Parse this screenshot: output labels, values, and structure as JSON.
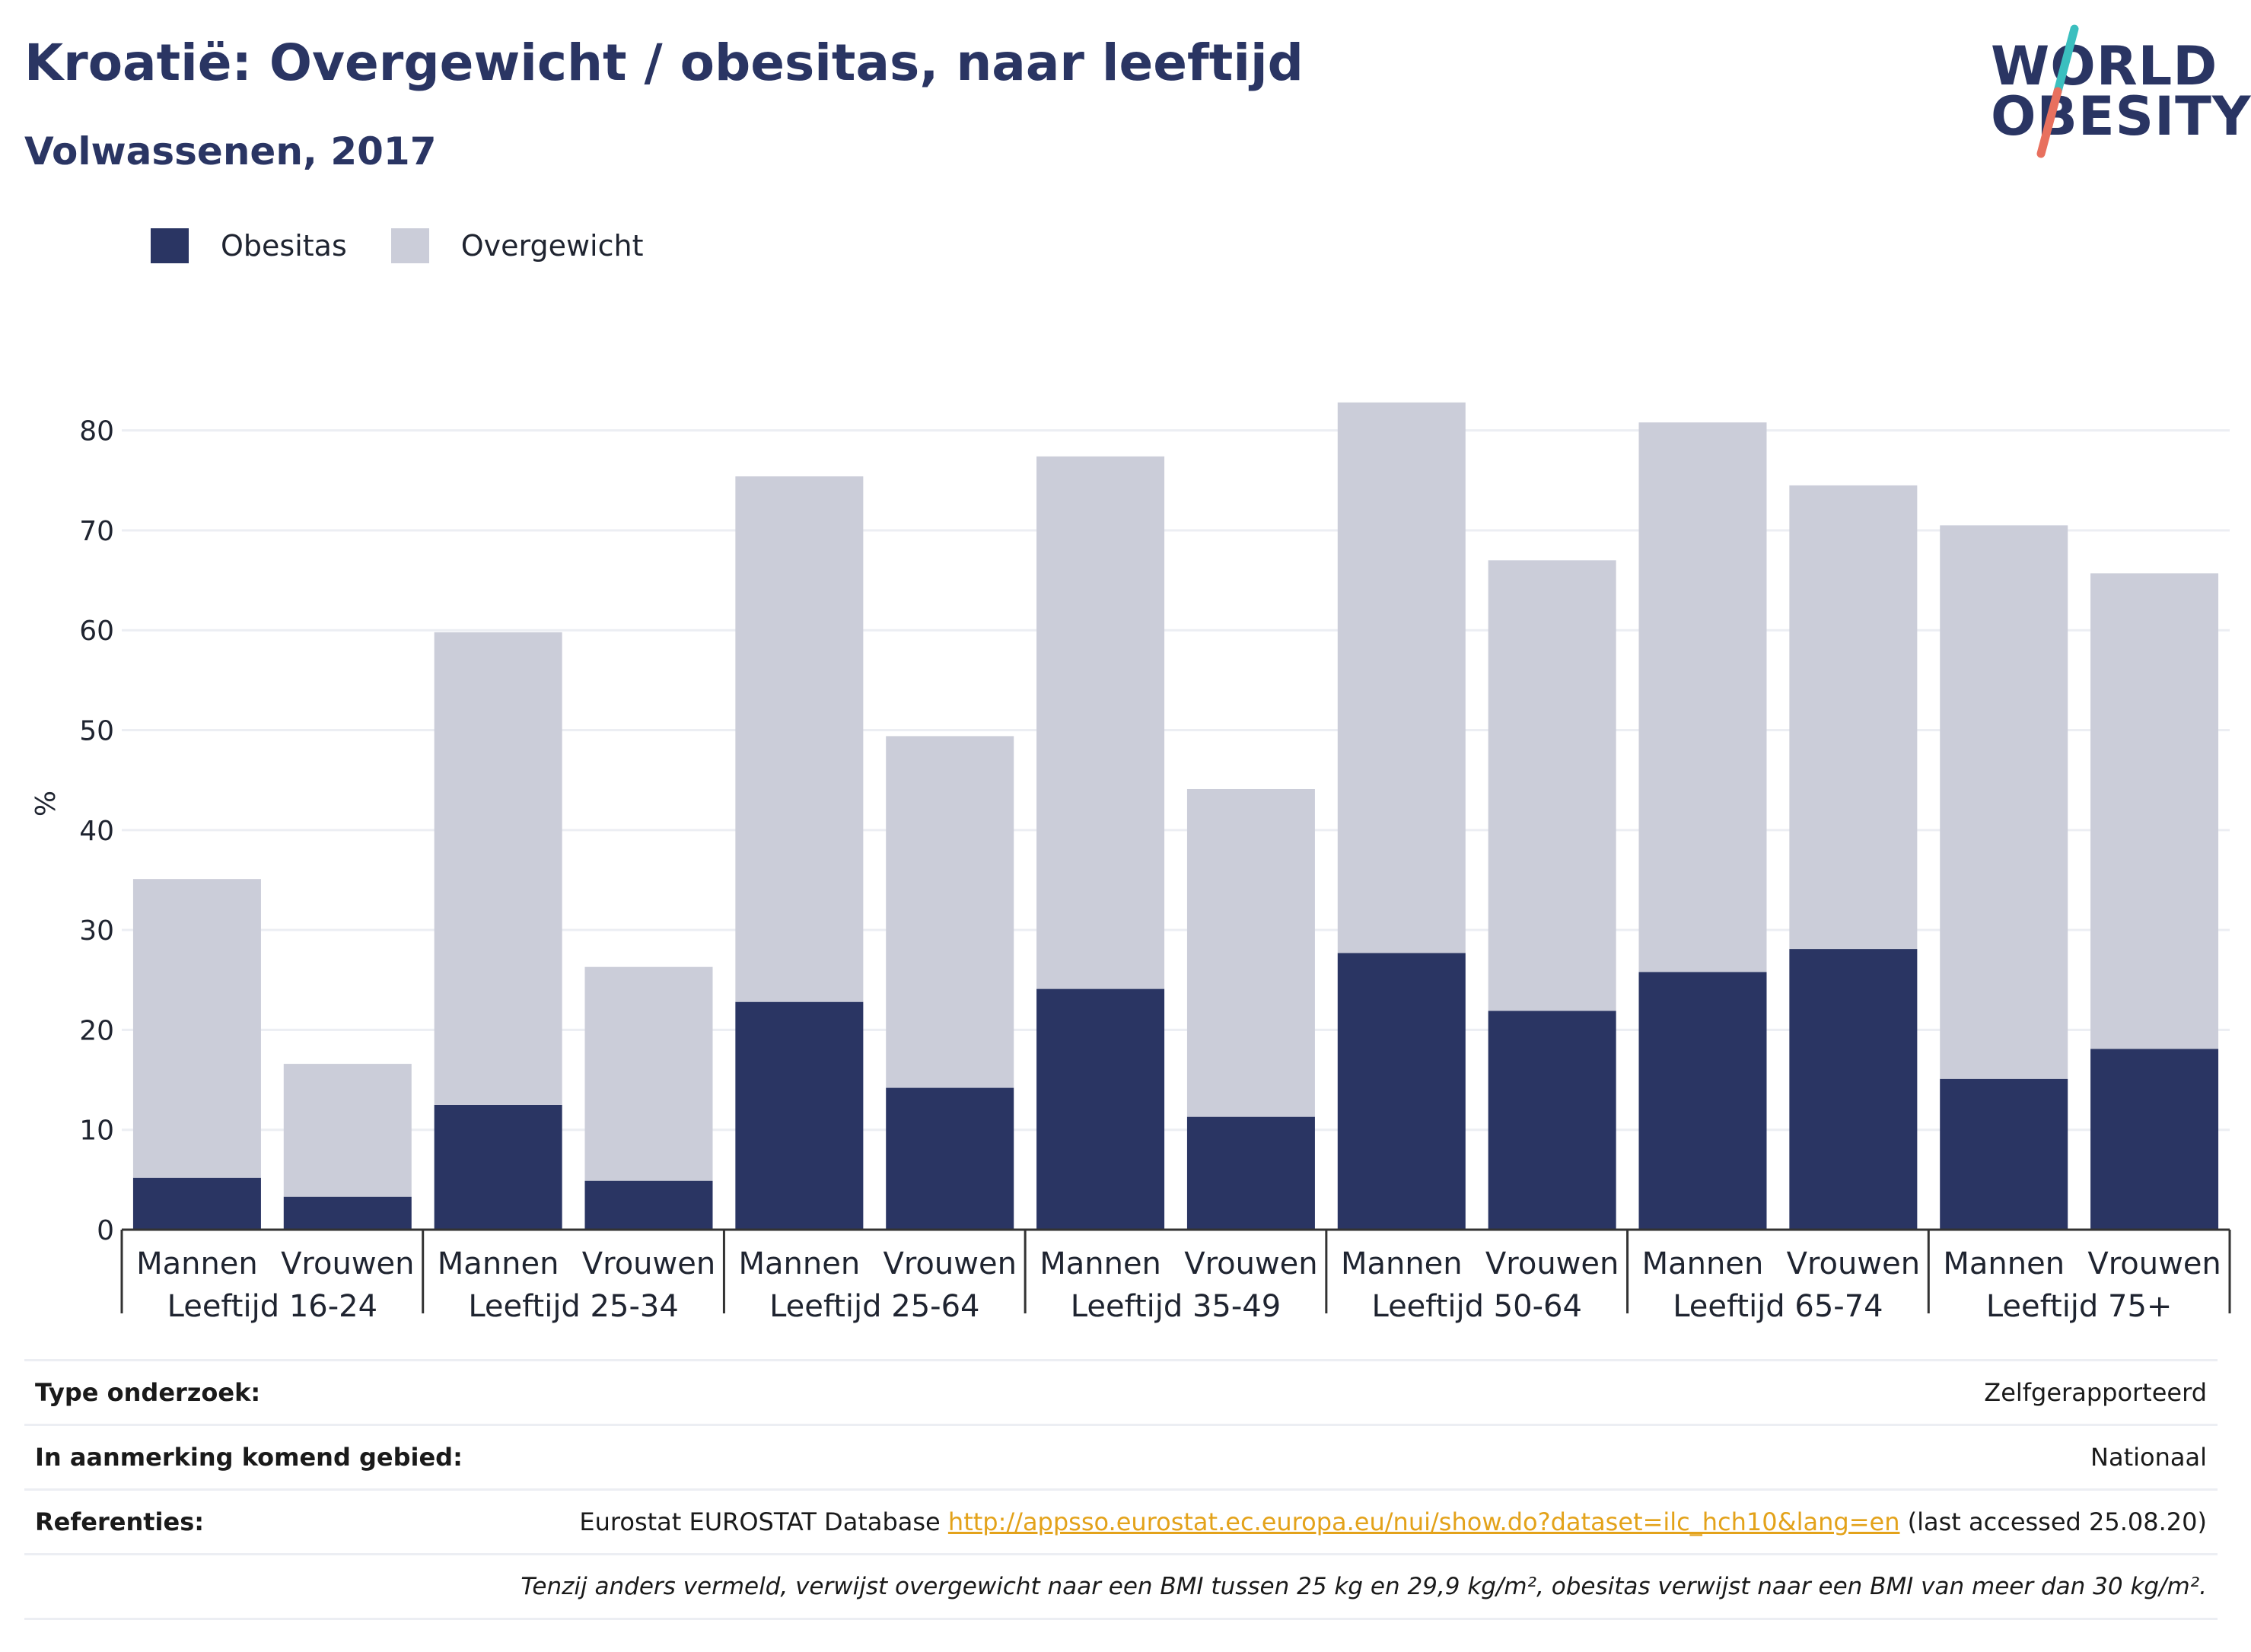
{
  "header": {
    "title": "Kroatië: Overgewicht / obesitas, naar leeftijd",
    "subtitle": "Volwassenen, 2017"
  },
  "logo": {
    "line1": "WORLD",
    "line2": "OBESITY",
    "colors": {
      "text": "#2a3563",
      "slash_top": "#3bbfbf",
      "slash_bottom": "#e8705e"
    }
  },
  "legend": {
    "items": [
      {
        "label": "Obesitas",
        "color": "#2a3563"
      },
      {
        "label": "Overgewicht",
        "color": "#cbcdd9"
      }
    ]
  },
  "chart_data": {
    "type": "bar",
    "stacked": true,
    "ylabel": "%",
    "ylim": [
      0,
      85
    ],
    "yticks": [
      0,
      10,
      20,
      30,
      40,
      50,
      60,
      70,
      80
    ],
    "grid": true,
    "legend_position": "top-left",
    "groups": [
      "Leeftijd 16-24",
      "Leeftijd 25-34",
      "Leeftijd 25-64",
      "Leeftijd 35-49",
      "Leeftijd 50-64",
      "Leeftijd 65-74",
      "Leeftijd 75+"
    ],
    "subcategories": [
      "Mannen",
      "Vrouwen"
    ],
    "series": [
      {
        "name": "Obesitas",
        "color": "#2a3563",
        "values": [
          5.2,
          3.3,
          12.5,
          4.9,
          22.8,
          14.2,
          24.1,
          11.3,
          27.7,
          21.9,
          25.8,
          28.1,
          15.1,
          18.1
        ]
      },
      {
        "name": "Overgewicht",
        "color": "#cbcdd9",
        "values": [
          29.9,
          13.3,
          47.3,
          21.4,
          52.6,
          35.2,
          53.3,
          32.8,
          55.1,
          45.1,
          55.0,
          46.4,
          55.4,
          47.6
        ]
      }
    ]
  },
  "info": {
    "survey_type": {
      "label": "Type onderzoek:",
      "value": "Zelfgerapporteerd"
    },
    "area": {
      "label": "In aanmerking komend gebied:",
      "value": "Nationaal"
    },
    "references": {
      "label": "Referenties:",
      "prefix": "Eurostat EUROSTAT Database ",
      "link": "http://appsso.eurostat.ec.europa.eu/nui/show.do?dataset=ilc_hch10&lang=en",
      "suffix": " (last accessed 25.08.20)"
    },
    "note": "Tenzij anders vermeld, verwijst overgewicht naar een BMI tussen 25 kg en 29,9 kg/m², obesitas verwijst naar een BMI van meer dan 30 kg/m²."
  }
}
